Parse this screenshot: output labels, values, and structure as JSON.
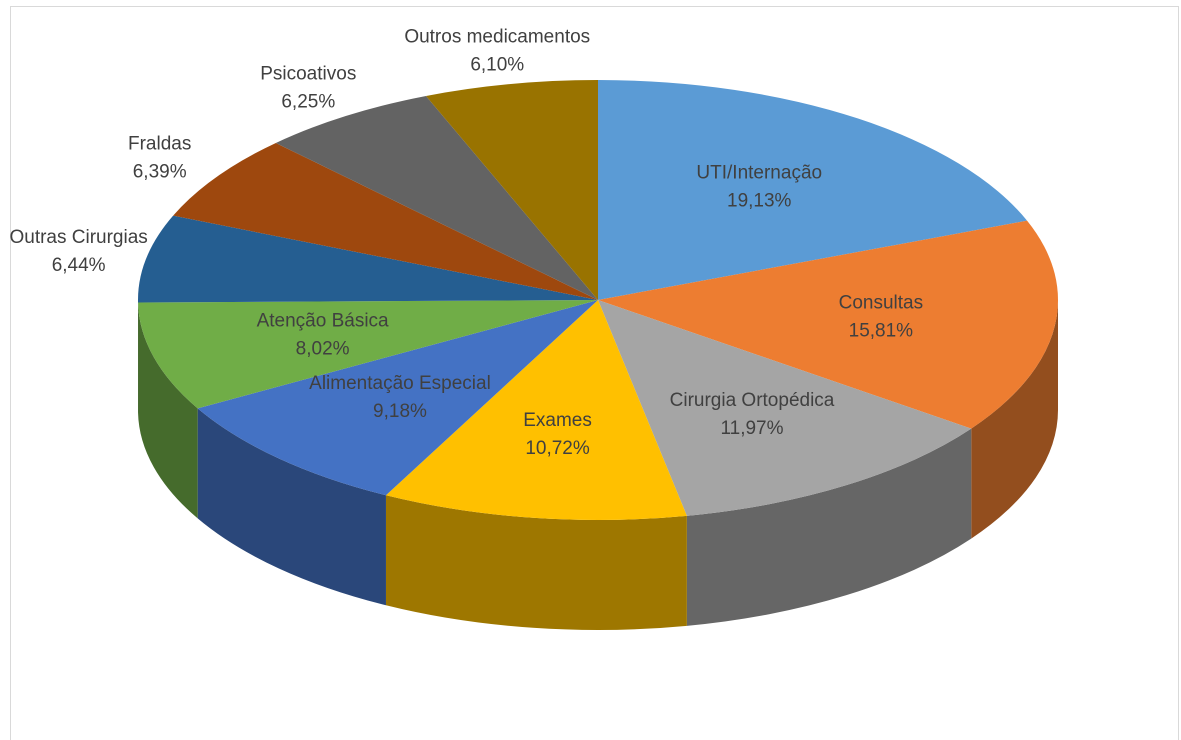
{
  "chart_data": {
    "type": "pie3d",
    "categories": [
      "UTI/Internação",
      "Consultas",
      "Cirurgia Ortopédica",
      "Exames",
      "Alimentação Especial",
      "Atenção Básica",
      "Outras Cirurgias",
      "Fraldas",
      "Psicoativos",
      "Outros medicamentos"
    ],
    "values": [
      19.13,
      15.81,
      11.97,
      10.72,
      9.18,
      8.02,
      6.44,
      6.39,
      6.25,
      6.1
    ],
    "value_labels": [
      "19,13%",
      "15,81%",
      "11,97%",
      "10,72%",
      "9,18%",
      "8,02%",
      "6,44%",
      "6,39%",
      "6,25%",
      "6,10%"
    ],
    "colors": [
      "#5b9bd5",
      "#ed7d31",
      "#a5a5a5",
      "#ffc000",
      "#4472c4",
      "#70ad47",
      "#255e91",
      "#9e480e",
      "#636363",
      "#997300"
    ]
  }
}
